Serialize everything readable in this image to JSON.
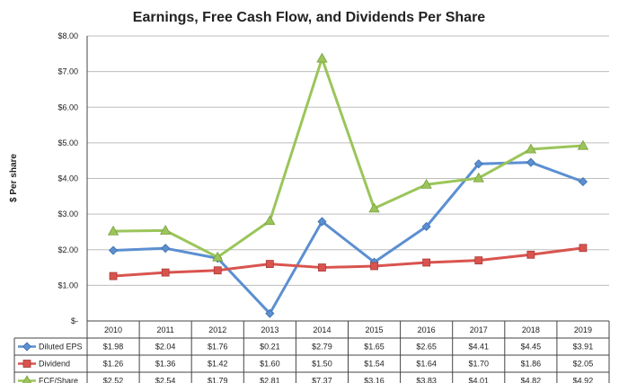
{
  "chart_data": {
    "type": "line",
    "title": "Earnings, Free Cash Flow, and Dividends Per Share",
    "ylabel": "$ Per share",
    "xlabel": "",
    "categories": [
      "2010",
      "2011",
      "2012",
      "2013",
      "2014",
      "2015",
      "2016",
      "2017",
      "2018",
      "2019"
    ],
    "ylim": [
      0,
      8
    ],
    "y_ticks": [
      0,
      1,
      2,
      3,
      4,
      5,
      6,
      7,
      8
    ],
    "y_tick_labels": [
      "$-",
      "$1.00",
      "$2.00",
      "$3.00",
      "$4.00",
      "$5.00",
      "$6.00",
      "$7.00",
      "$8.00"
    ],
    "grid": "horizontal",
    "legend": "data-table-below",
    "series": [
      {
        "name": "Diluted EPS",
        "color": "#5b8fd1",
        "marker": "diamond",
        "values": [
          1.98,
          2.04,
          1.76,
          0.21,
          2.79,
          1.65,
          2.65,
          4.41,
          4.45,
          3.91
        ],
        "labels": [
          "$1.98",
          "$2.04",
          "$1.76",
          "$0.21",
          "$2.79",
          "$1.65",
          "$2.65",
          "$4.41",
          "$4.45",
          "$3.91"
        ]
      },
      {
        "name": "Dividend",
        "color": "#d9544f",
        "marker": "square",
        "values": [
          1.26,
          1.36,
          1.42,
          1.6,
          1.5,
          1.54,
          1.64,
          1.7,
          1.86,
          2.05
        ],
        "labels": [
          "$1.26",
          "$1.36",
          "$1.42",
          "$1.60",
          "$1.50",
          "$1.54",
          "$1.64",
          "$1.70",
          "$1.86",
          "$2.05"
        ]
      },
      {
        "name": "FCF/Share",
        "color": "#9bc55a",
        "marker": "triangle",
        "values": [
          2.52,
          2.54,
          1.79,
          2.81,
          7.37,
          3.16,
          3.83,
          4.01,
          4.82,
          4.92
        ],
        "labels": [
          "$2.52",
          "$2.54",
          "$1.79",
          "$2.81",
          "$7.37",
          "$3.16",
          "$3.83",
          "$4.01",
          "$4.82",
          "$4.92"
        ]
      }
    ]
  }
}
